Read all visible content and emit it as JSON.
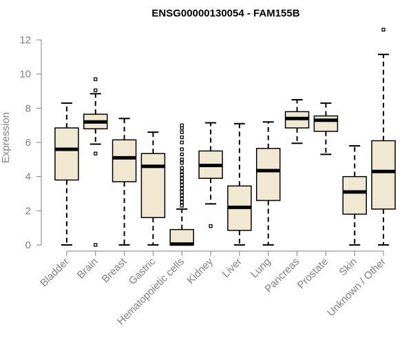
{
  "chart_data": {
    "type": "boxplot",
    "title": "ENSG00000130054 - FAM155B",
    "xlabel": "",
    "ylabel": "Expression",
    "ylim": [
      0,
      12.6
    ],
    "yticks": [
      0,
      2,
      4,
      6,
      8,
      10,
      12
    ],
    "grid": false,
    "colors": {
      "box_fill": "#f0e8d0",
      "stroke": "#000000",
      "axis": "#7f7f7f"
    },
    "categories": [
      "Bladder",
      "Brain",
      "Breast",
      "Gastric",
      "Hematopoietic cells",
      "Kidney",
      "Liver",
      "Lung",
      "Pancreas",
      "Prostate",
      "Skin",
      "Unknown / Other"
    ],
    "boxes": [
      {
        "min": 0.0,
        "q1": 3.8,
        "median": 5.6,
        "q3": 6.85,
        "max": 8.3,
        "outliers": []
      },
      {
        "min": 5.9,
        "q1": 6.8,
        "median": 7.2,
        "q3": 7.65,
        "max": 8.85,
        "outliers": [
          9.7,
          9.05,
          5.35,
          0.0
        ]
      },
      {
        "min": 0.0,
        "q1": 3.7,
        "median": 5.1,
        "q3": 6.15,
        "max": 7.4,
        "outliers": []
      },
      {
        "min": 0.0,
        "q1": 1.6,
        "median": 4.6,
        "q3": 5.35,
        "max": 6.6,
        "outliers": []
      },
      {
        "min": 0.0,
        "q1": 0.0,
        "median": 0.05,
        "q3": 0.9,
        "max": 2.1,
        "outliers": [
          2.3,
          2.5,
          2.7,
          2.9,
          3.1,
          3.3,
          3.5,
          3.7,
          3.9,
          4.1,
          4.3,
          4.5,
          4.8,
          5.0,
          5.3,
          5.6,
          6.0,
          6.3,
          6.6,
          6.85,
          7.0
        ]
      },
      {
        "min": 2.4,
        "q1": 3.9,
        "median": 4.65,
        "q3": 5.5,
        "max": 7.15,
        "outliers": [
          1.1
        ]
      },
      {
        "min": 0.0,
        "q1": 0.85,
        "median": 2.2,
        "q3": 3.45,
        "max": 7.1,
        "outliers": []
      },
      {
        "min": 0.0,
        "q1": 2.6,
        "median": 4.35,
        "q3": 5.65,
        "max": 7.2,
        "outliers": []
      },
      {
        "min": 5.95,
        "q1": 6.85,
        "median": 7.4,
        "q3": 7.8,
        "max": 8.5,
        "outliers": []
      },
      {
        "min": 5.3,
        "q1": 6.65,
        "median": 7.3,
        "q3": 7.55,
        "max": 8.3,
        "outliers": []
      },
      {
        "min": 0.0,
        "q1": 1.8,
        "median": 3.1,
        "q3": 4.0,
        "max": 5.8,
        "outliers": []
      },
      {
        "min": 0.0,
        "q1": 2.1,
        "median": 4.3,
        "q3": 6.1,
        "max": 11.15,
        "outliers": [
          12.6
        ]
      }
    ]
  }
}
